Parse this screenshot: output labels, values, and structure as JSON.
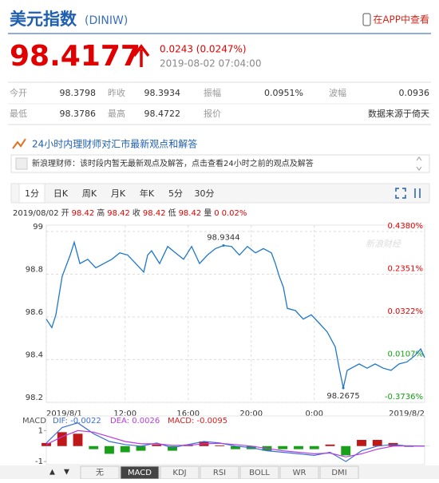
{
  "header": {
    "title": "美元指数",
    "code": "(DINIW)",
    "app_link": "在APP中查看"
  },
  "quote": {
    "price": "98.4177",
    "change": "0.0243 (0.0247%)",
    "time": "2019-08-02 07:04:00"
  },
  "stats": {
    "rows": [
      [
        {
          "label": "今开",
          "value": "98.3798"
        },
        {
          "label": "昨收",
          "value": "98.3934"
        },
        {
          "label": "振幅",
          "value": "0.0951%"
        },
        {
          "label": "波幅",
          "value": "0.0936"
        }
      ],
      [
        {
          "label": "最低",
          "value": "98.3786"
        },
        {
          "label": "最高",
          "value": "98.4722"
        },
        {
          "label": "报价"
        }
      ]
    ],
    "source": "数据来源于倚天"
  },
  "news": {
    "headline": "24小时内理财师对汇市最新观点和解答",
    "item": "新浪理财师：该时段内暂无最新观点及解答，点击查看24小时之前的观点及解答"
  },
  "period_tabs": [
    "1分",
    "日K",
    "周K",
    "月K",
    "年K",
    "5分",
    "30分"
  ],
  "info_line": [
    "2019/08/02",
    "开",
    "98.42",
    "高",
    "98.42",
    "收",
    "98.42",
    "低",
    "98.42",
    "量",
    "0",
    "0.02%"
  ],
  "watermark": "新浪财经",
  "chart_data": [
    {
      "type": "line",
      "xlim": [
        7,
        31
      ],
      "ylim": [
        98.2,
        99
      ],
      "xticks": [
        {
          "value": 7,
          "label": "2019/8/1"
        },
        {
          "value": 12,
          "label": "12:00"
        },
        {
          "value": 16,
          "label": "16:00"
        },
        {
          "value": 20,
          "label": "20:00"
        },
        {
          "value": 24,
          "label": "0:00"
        },
        {
          "value": 31,
          "label": "2019/8/2"
        }
      ],
      "yticks": [
        98.2,
        98.4,
        98.6,
        98.8,
        99
      ],
      "y2_labels": [
        "-0.3736%",
        "0.0107%",
        "0.0322%",
        "0.2351%",
        "0.4380%"
      ],
      "y2_colors": [
        "#11a011",
        "#11a011",
        "#e00000",
        "#e00000",
        "#e00000"
      ],
      "grid": true,
      "x": [
        7.0,
        7.35,
        7.61,
        8.01,
        8.52,
        8.77,
        9.13,
        9.63,
        10.14,
        10.65,
        11.15,
        11.66,
        12.16,
        12.67,
        13.18,
        13.43,
        13.68,
        14.19,
        14.7,
        15.2,
        15.71,
        16.22,
        16.72,
        17.23,
        17.73,
        18.24,
        18.75,
        19.25,
        19.76,
        20.27,
        20.77,
        21.28,
        21.53,
        21.78,
        22.04,
        22.29,
        22.8,
        23.3,
        23.81,
        24.32,
        24.82,
        25.33,
        25.58,
        25.84,
        26.09,
        26.34,
        26.85,
        27.35,
        27.86,
        28.37,
        28.87,
        29.38,
        29.89,
        30.39,
        30.75,
        31.0
      ],
      "series": [
        {
          "color": "#1f78c8",
          "values": [
            98.59,
            98.55,
            98.61,
            98.79,
            98.89,
            98.95,
            98.85,
            98.87,
            98.83,
            98.85,
            98.87,
            98.9,
            98.89,
            98.85,
            98.81,
            98.89,
            98.91,
            98.85,
            98.93,
            98.9,
            98.87,
            98.93,
            98.85,
            98.89,
            98.92,
            98.9344,
            98.93,
            98.89,
            98.93,
            98.9,
            98.92,
            98.9,
            98.85,
            98.79,
            98.74,
            98.64,
            98.63,
            98.59,
            98.61,
            98.57,
            98.53,
            98.46,
            98.36,
            98.2675,
            98.35,
            98.36,
            98.38,
            98.36,
            98.38,
            98.36,
            98.35,
            98.38,
            98.39,
            98.42,
            98.45,
            98.41
          ]
        }
      ],
      "annotations": [
        {
          "label": "98.9344",
          "x": 18.24,
          "y": 98.9344
        },
        {
          "label": "98.2675",
          "x": 25.84,
          "y": 98.2675
        }
      ]
    },
    {
      "type": "macd",
      "title": "MACD",
      "xlim": [
        7,
        31
      ],
      "ylim": [
        -1.2,
        1.95
      ],
      "yticks": [
        1,
        -1
      ],
      "x": [
        7,
        8,
        9,
        10,
        11,
        12,
        13,
        14,
        15,
        16,
        17,
        18,
        19,
        20,
        21,
        22,
        23,
        24,
        25,
        26,
        27,
        28,
        29,
        30,
        31
      ],
      "series": [
        {
          "name": "DIF: -0.0022",
          "color": "#3b6fd8",
          "values": [
            0.2,
            1.2,
            1.5,
            0.8,
            0.3,
            0.1,
            0.0,
            0.2,
            -0.1,
            0.1,
            0.3,
            0.2,
            0.0,
            -0.1,
            -0.3,
            -0.4,
            -0.5,
            -0.6,
            -0.4,
            -1.0,
            -0.3,
            0.0,
            0.1,
            0.0,
            -0.0022
          ]
        },
        {
          "name": "DEA: 0.0026",
          "color": "#b63de0",
          "values": [
            0.1,
            0.6,
            1.0,
            0.9,
            0.6,
            0.3,
            0.15,
            0.15,
            0.05,
            0.05,
            0.15,
            0.18,
            0.1,
            0.0,
            -0.15,
            -0.3,
            -0.4,
            -0.5,
            -0.45,
            -0.7,
            -0.5,
            -0.2,
            0.0,
            0.02,
            0.0026
          ]
        }
      ],
      "histogram": {
        "name": "MACD: -0.0095",
        "color": "#d42020",
        "up_color": "#c01818",
        "down_color": "#18a018",
        "values": [
          0.2,
          0.9,
          0.8,
          -0.2,
          -0.5,
          -0.4,
          -0.3,
          0.1,
          -0.3,
          0.1,
          0.3,
          0.05,
          -0.2,
          -0.2,
          -0.3,
          -0.2,
          -0.2,
          -0.2,
          0.1,
          -0.6,
          0.4,
          0.4,
          0.2,
          -0.05,
          -0.0095
        ]
      }
    }
  ],
  "indicator_tabs": [
    "无",
    "MACD",
    "KDJ",
    "RSI",
    "BOLL",
    "WR",
    "DMI"
  ]
}
